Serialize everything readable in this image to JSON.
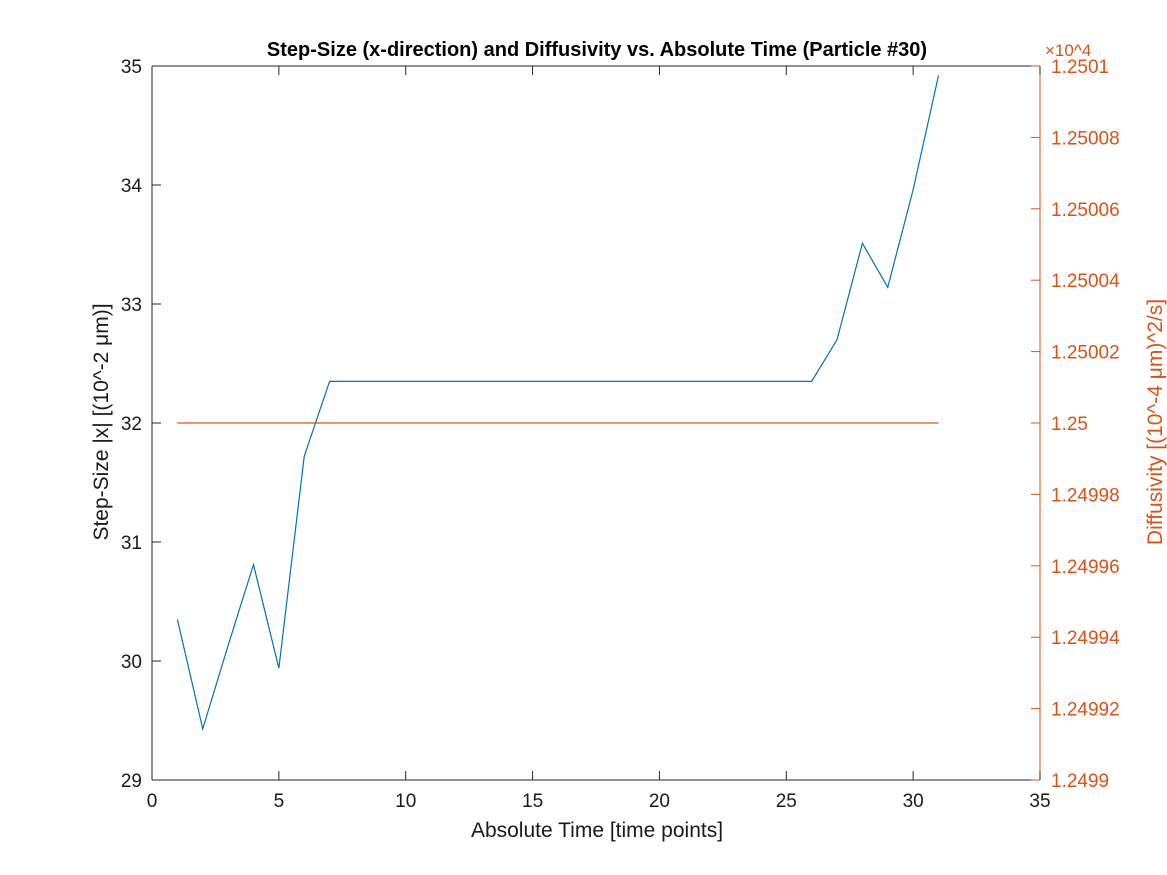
{
  "chart_data": {
    "type": "line",
    "title": "Step-Size (x-direction) and Diffusivity vs. Absolute Time (Particle #30)",
    "xlabel": "Absolute Time [time points]",
    "ylabel_left": "Step-Size |x| [(10^-2 μm)]",
    "ylabel_right": "Diffusivity [(10^-4 μm)^2/s]",
    "right_axis_multiplier": "×10^4",
    "xlim": [
      0,
      35
    ],
    "ylim_left": [
      29,
      35
    ],
    "ylim_right": [
      1.2499,
      1.2501
    ],
    "x_ticks": [
      "0",
      "5",
      "10",
      "15",
      "20",
      "25",
      "30",
      "35"
    ],
    "y_left_ticks": [
      "29",
      "30",
      "31",
      "32",
      "33",
      "34",
      "35"
    ],
    "y_right_ticks": [
      "1.2499",
      "1.24992",
      "1.24994",
      "1.24996",
      "1.24998",
      "1.25",
      "1.25002",
      "1.25004",
      "1.25006",
      "1.25008",
      "1.2501"
    ],
    "grid": false,
    "legend": "none",
    "colors": {
      "left": "#0072bd",
      "right": "#d95319",
      "axis": "#262626"
    },
    "series": [
      {
        "axis": "left",
        "x": [
          1,
          2,
          3,
          4,
          5,
          6,
          7,
          8,
          9,
          10,
          11,
          12,
          13,
          14,
          15,
          16,
          17,
          18,
          19,
          20,
          21,
          22,
          23,
          24,
          25,
          26,
          27,
          28,
          29,
          30,
          31
        ],
        "values": [
          30.35,
          29.43,
          30.13,
          30.81,
          29.94,
          31.72,
          32.35,
          32.35,
          32.35,
          32.35,
          32.35,
          32.35,
          32.35,
          32.35,
          32.35,
          32.35,
          32.35,
          32.35,
          32.35,
          32.35,
          32.35,
          32.35,
          32.35,
          32.35,
          32.35,
          32.35,
          32.7,
          33.51,
          33.14,
          33.96,
          34.92
        ]
      },
      {
        "axis": "right",
        "x": [
          1,
          31
        ],
        "values": [
          1.25,
          1.25
        ]
      }
    ]
  }
}
